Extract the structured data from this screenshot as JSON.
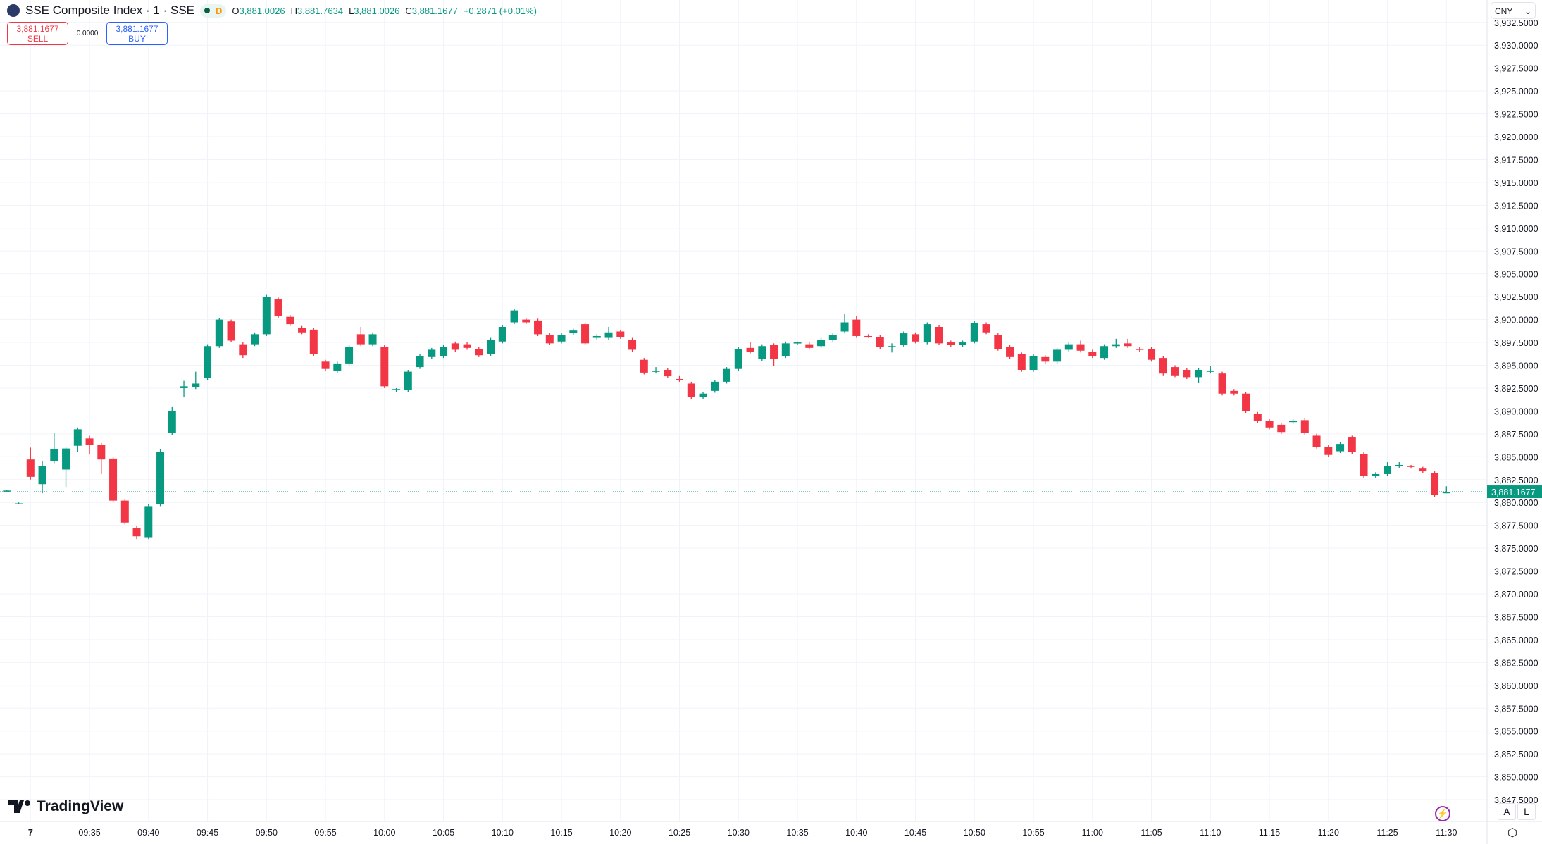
{
  "header": {
    "title": "SSE Composite Index · 1 · SSE",
    "interval_badge": "D",
    "open_label": "O",
    "open": "3,881.0026",
    "high_label": "H",
    "high": "3,881.7634",
    "low_label": "L",
    "low": "3,881.0026",
    "close_label": "C",
    "close": "3,881.1677",
    "change": "+0.2871 (+0.01%)"
  },
  "trade": {
    "sell_price": "3,881.1677",
    "sell_label": "SELL",
    "spread": "0.0000",
    "buy_price": "3,881.1677",
    "buy_label": "BUY"
  },
  "currency": "CNY",
  "brand": "TradingView",
  "scale_buttons": {
    "auto": "A",
    "log": "L"
  },
  "last_price_label": "3,881.1677",
  "colors": {
    "up": "#089981",
    "down": "#f23645",
    "grid": "#f0f3fa",
    "accent": "#2962ff"
  },
  "chart_data": {
    "type": "candlestick",
    "ylim": [
      3847.5,
      3932.5
    ],
    "y_ticks": [
      "3,932.5000",
      "3,930.0000",
      "3,927.5000",
      "3,925.0000",
      "3,922.5000",
      "3,920.0000",
      "3,917.5000",
      "3,915.0000",
      "3,912.5000",
      "3,910.0000",
      "3,907.5000",
      "3,905.0000",
      "3,902.5000",
      "3,900.0000",
      "3,897.5000",
      "3,895.0000",
      "3,892.5000",
      "3,890.0000",
      "3,887.5000",
      "3,885.0000",
      "3,882.5000",
      "3,880.0000",
      "3,877.5000",
      "3,875.0000",
      "3,872.5000",
      "3,870.0000",
      "3,867.5000",
      "3,865.0000",
      "3,862.5000",
      "3,860.0000",
      "3,857.5000",
      "3,855.0000",
      "3,852.5000",
      "3,850.0000",
      "3,847.5000"
    ],
    "x_ticks": [
      "7",
      "09:35",
      "09:40",
      "09:45",
      "09:50",
      "09:55",
      "10:00",
      "10:05",
      "10:10",
      "10:15",
      "10:20",
      "10:25",
      "10:30",
      "10:35",
      "10:40",
      "10:45",
      "10:50",
      "10:55",
      "11:00",
      "11:05",
      "11:10",
      "11:15",
      "11:20",
      "11:25",
      "11:30"
    ],
    "last_price": 3881.1677,
    "candles": [
      [
        "09:28",
        3881.3,
        3881.4,
        3881.2,
        3881.3
      ],
      [
        "09:29",
        3879.9,
        3880.0,
        3879.8,
        3879.9
      ],
      [
        "09:30",
        3884.7,
        3886.0,
        3882.5,
        3882.8
      ],
      [
        "09:31",
        3882.0,
        3884.5,
        3881.0,
        3884.0
      ],
      [
        "09:32",
        3884.5,
        3887.6,
        3884.3,
        3885.8
      ],
      [
        "09:33",
        3883.6,
        3886.0,
        3881.7,
        3885.9
      ],
      [
        "09:34",
        3886.2,
        3888.2,
        3885.5,
        3888.0
      ],
      [
        "09:35",
        3887.0,
        3887.3,
        3885.3,
        3886.3
      ],
      [
        "09:36",
        3886.3,
        3886.5,
        3883.1,
        3884.7
      ],
      [
        "09:37",
        3884.8,
        3885.0,
        3880.0,
        3880.2
      ],
      [
        "09:38",
        3880.2,
        3880.4,
        3877.6,
        3877.8
      ],
      [
        "09:39",
        3877.2,
        3877.4,
        3876.0,
        3876.3
      ],
      [
        "09:40",
        3876.2,
        3879.8,
        3876.0,
        3879.6
      ],
      [
        "09:41",
        3879.8,
        3885.8,
        3879.6,
        3885.5
      ],
      [
        "09:42",
        3887.6,
        3890.5,
        3887.4,
        3890.0
      ],
      [
        "09:43",
        3892.5,
        3893.3,
        3891.5,
        3892.7
      ],
      [
        "09:44",
        3892.6,
        3894.3,
        3892.4,
        3893.0
      ],
      [
        "09:45",
        3893.6,
        3897.3,
        3893.4,
        3897.1
      ],
      [
        "09:46",
        3897.1,
        3900.2,
        3896.9,
        3900.0
      ],
      [
        "09:47",
        3899.8,
        3900.0,
        3897.5,
        3897.7
      ],
      [
        "09:48",
        3897.3,
        3897.5,
        3895.8,
        3896.1
      ],
      [
        "09:49",
        3897.3,
        3898.6,
        3897.1,
        3898.4
      ],
      [
        "09:50",
        3898.4,
        3902.7,
        3898.2,
        3902.5
      ],
      [
        "09:51",
        3902.2,
        3902.4,
        3900.2,
        3900.4
      ],
      [
        "09:52",
        3900.3,
        3900.5,
        3899.3,
        3899.5
      ],
      [
        "09:53",
        3899.1,
        3899.3,
        3898.4,
        3898.6
      ],
      [
        "09:54",
        3898.9,
        3899.1,
        3896.0,
        3896.2
      ],
      [
        "09:55",
        3895.4,
        3895.6,
        3894.4,
        3894.6
      ],
      [
        "09:56",
        3894.4,
        3895.4,
        3894.2,
        3895.2
      ],
      [
        "09:57",
        3895.2,
        3897.2,
        3895.0,
        3897.0
      ],
      [
        "09:58",
        3898.4,
        3899.2,
        3897.1,
        3897.3
      ],
      [
        "09:59",
        3897.3,
        3898.6,
        3897.1,
        3898.4
      ],
      [
        "10:00",
        3897.0,
        3897.2,
        3892.5,
        3892.7
      ],
      [
        "10:01",
        3892.3,
        3892.5,
        3892.1,
        3892.4
      ],
      [
        "10:02",
        3892.3,
        3894.5,
        3892.1,
        3894.3
      ],
      [
        "10:03",
        3894.8,
        3896.2,
        3894.6,
        3896.0
      ],
      [
        "10:04",
        3895.9,
        3896.9,
        3895.7,
        3896.7
      ],
      [
        "10:05",
        3896.0,
        3897.2,
        3895.8,
        3897.0
      ],
      [
        "10:06",
        3897.4,
        3897.6,
        3896.5,
        3896.7
      ],
      [
        "10:07",
        3897.3,
        3897.5,
        3896.7,
        3896.9
      ],
      [
        "10:08",
        3896.8,
        3897.0,
        3895.9,
        3896.1
      ],
      [
        "10:09",
        3896.2,
        3898.0,
        3896.0,
        3897.8
      ],
      [
        "10:10",
        3897.6,
        3899.4,
        3897.4,
        3899.2
      ],
      [
        "10:11",
        3899.7,
        3901.2,
        3899.5,
        3901.0
      ],
      [
        "10:12",
        3900.0,
        3900.2,
        3899.5,
        3899.7
      ],
      [
        "10:13",
        3899.9,
        3900.1,
        3898.2,
        3898.4
      ],
      [
        "10:14",
        3898.3,
        3898.5,
        3897.2,
        3897.4
      ],
      [
        "10:15",
        3897.6,
        3898.5,
        3897.4,
        3898.3
      ],
      [
        "10:16",
        3898.5,
        3899.0,
        3898.3,
        3898.8
      ],
      [
        "10:17",
        3899.5,
        3899.7,
        3897.2,
        3897.4
      ],
      [
        "10:18",
        3898.0,
        3898.4,
        3897.8,
        3898.2
      ],
      [
        "10:19",
        3898.0,
        3899.2,
        3897.8,
        3898.6
      ],
      [
        "10:20",
        3898.7,
        3898.9,
        3897.9,
        3898.1
      ],
      [
        "10:21",
        3897.8,
        3898.0,
        3896.5,
        3896.7
      ],
      [
        "10:22",
        3895.6,
        3895.8,
        3894.0,
        3894.2
      ],
      [
        "10:23",
        3894.3,
        3894.8,
        3894.1,
        3894.4
      ],
      [
        "10:24",
        3894.5,
        3894.7,
        3893.6,
        3893.8
      ],
      [
        "10:25",
        3893.5,
        3893.9,
        3893.2,
        3893.4
      ],
      [
        "10:26",
        3893.0,
        3893.2,
        3891.3,
        3891.5
      ],
      [
        "10:27",
        3891.5,
        3892.1,
        3891.3,
        3891.9
      ],
      [
        "10:28",
        3892.2,
        3893.4,
        3892.0,
        3893.2
      ],
      [
        "10:29",
        3893.2,
        3894.8,
        3893.0,
        3894.6
      ],
      [
        "10:30",
        3894.6,
        3897.0,
        3894.4,
        3896.8
      ],
      [
        "10:31",
        3896.9,
        3897.5,
        3896.3,
        3896.5
      ],
      [
        "10:32",
        3895.7,
        3897.3,
        3895.5,
        3897.1
      ],
      [
        "10:33",
        3897.2,
        3897.4,
        3894.9,
        3895.7
      ],
      [
        "10:34",
        3896.0,
        3897.6,
        3895.8,
        3897.4
      ],
      [
        "10:35",
        3897.4,
        3897.6,
        3897.2,
        3897.5
      ],
      [
        "10:36",
        3897.3,
        3897.5,
        3896.7,
        3896.9
      ],
      [
        "10:37",
        3897.1,
        3898.0,
        3896.9,
        3897.8
      ],
      [
        "10:38",
        3897.8,
        3898.5,
        3897.6,
        3898.3
      ],
      [
        "10:39",
        3898.7,
        3900.6,
        3898.5,
        3899.7
      ],
      [
        "10:40",
        3900.0,
        3900.4,
        3898.0,
        3898.2
      ],
      [
        "10:41",
        3898.2,
        3898.4,
        3898.0,
        3898.1
      ],
      [
        "10:42",
        3898.1,
        3898.3,
        3896.8,
        3897.0
      ],
      [
        "10:43",
        3897.0,
        3897.4,
        3896.4,
        3897.1
      ],
      [
        "10:44",
        3897.2,
        3898.7,
        3897.0,
        3898.5
      ],
      [
        "10:45",
        3898.4,
        3898.6,
        3897.4,
        3897.6
      ],
      [
        "10:46",
        3897.5,
        3899.7,
        3897.3,
        3899.5
      ],
      [
        "10:47",
        3899.2,
        3899.4,
        3897.2,
        3897.4
      ],
      [
        "10:48",
        3897.5,
        3897.7,
        3897.0,
        3897.2
      ],
      [
        "10:49",
        3897.2,
        3897.7,
        3897.0,
        3897.5
      ],
      [
        "10:50",
        3897.6,
        3899.8,
        3897.4,
        3899.6
      ],
      [
        "10:51",
        3899.5,
        3899.7,
        3898.4,
        3898.6
      ],
      [
        "10:52",
        3898.3,
        3898.5,
        3896.6,
        3896.8
      ],
      [
        "10:53",
        3897.0,
        3897.2,
        3895.7,
        3895.9
      ],
      [
        "10:54",
        3896.2,
        3896.4,
        3894.3,
        3894.5
      ],
      [
        "10:55",
        3894.5,
        3896.2,
        3894.3,
        3896.0
      ],
      [
        "10:56",
        3895.9,
        3896.1,
        3895.2,
        3895.4
      ],
      [
        "10:57",
        3895.4,
        3896.9,
        3895.2,
        3896.7
      ],
      [
        "10:58",
        3896.7,
        3897.5,
        3896.5,
        3897.3
      ],
      [
        "10:59",
        3897.3,
        3897.7,
        3896.4,
        3896.6
      ],
      [
        "11:00",
        3896.5,
        3896.7,
        3895.8,
        3896.0
      ],
      [
        "11:01",
        3895.8,
        3897.3,
        3895.6,
        3897.1
      ],
      [
        "11:02",
        3897.1,
        3897.9,
        3896.9,
        3897.3
      ],
      [
        "11:03",
        3897.4,
        3897.9,
        3896.9,
        3897.1
      ],
      [
        "11:04",
        3896.8,
        3897.0,
        3896.5,
        3896.7
      ],
      [
        "11:05",
        3896.8,
        3897.0,
        3895.4,
        3895.6
      ],
      [
        "11:06",
        3895.8,
        3896.0,
        3893.9,
        3894.1
      ],
      [
        "11:07",
        3894.8,
        3895.0,
        3893.7,
        3893.9
      ],
      [
        "11:08",
        3894.5,
        3894.7,
        3893.5,
        3893.7
      ],
      [
        "11:09",
        3893.7,
        3894.7,
        3893.1,
        3894.5
      ],
      [
        "11:10",
        3894.3,
        3894.9,
        3894.1,
        3894.4
      ],
      [
        "11:11",
        3894.1,
        3894.3,
        3891.7,
        3891.9
      ],
      [
        "11:12",
        3892.2,
        3892.4,
        3891.7,
        3891.9
      ],
      [
        "11:13",
        3891.9,
        3892.1,
        3889.8,
        3890.0
      ],
      [
        "11:14",
        3889.7,
        3889.9,
        3888.7,
        3888.9
      ],
      [
        "11:15",
        3888.9,
        3889.1,
        3888.0,
        3888.2
      ],
      [
        "11:16",
        3888.5,
        3888.7,
        3887.5,
        3887.7
      ],
      [
        "11:17",
        3888.8,
        3889.1,
        3888.6,
        3888.9
      ],
      [
        "11:18",
        3889.0,
        3889.2,
        3887.4,
        3887.6
      ],
      [
        "11:19",
        3887.3,
        3887.5,
        3885.9,
        3886.1
      ],
      [
        "11:20",
        3886.1,
        3886.3,
        3885.0,
        3885.2
      ],
      [
        "11:21",
        3885.6,
        3886.6,
        3885.4,
        3886.4
      ],
      [
        "11:22",
        3887.1,
        3887.3,
        3885.3,
        3885.5
      ],
      [
        "11:23",
        3885.3,
        3885.5,
        3882.7,
        3882.9
      ],
      [
        "11:24",
        3882.9,
        3883.3,
        3882.7,
        3883.1
      ],
      [
        "11:25",
        3883.1,
        3884.4,
        3882.9,
        3884.0
      ],
      [
        "11:26",
        3884.0,
        3884.4,
        3883.8,
        3884.1
      ],
      [
        "11:27",
        3884.0,
        3884.1,
        3883.7,
        3883.9
      ],
      [
        "11:28",
        3883.7,
        3883.9,
        3883.2,
        3883.4
      ],
      [
        "11:29",
        3883.2,
        3883.4,
        3880.6,
        3880.8
      ],
      [
        "11:30",
        3881.0026,
        3881.7634,
        3881.0026,
        3881.1677
      ]
    ]
  }
}
